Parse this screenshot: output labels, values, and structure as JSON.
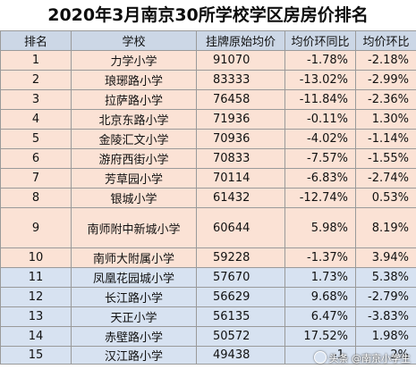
{
  "title": "2020年3月南京30所学校学区房房价排名",
  "headers": [
    "排名",
    "学校",
    "挂牌原始均价",
    "均价环同比",
    "均价环比"
  ],
  "rows": [
    {
      "rank": "1",
      "school": "力学小学",
      "price": "91070",
      "yoy": "-1.78%",
      "mom": "-2.18%"
    },
    {
      "rank": "2",
      "school": "琅琊路小学",
      "price": "83333",
      "yoy": "-13.02%",
      "mom": "-2.99%"
    },
    {
      "rank": "3",
      "school": "拉萨路小学",
      "price": "76458",
      "yoy": "-11.84%",
      "mom": "-2.36%"
    },
    {
      "rank": "4",
      "school": "北京东路小学",
      "price": "71936",
      "yoy": "-0.11%",
      "mom": "1.30%"
    },
    {
      "rank": "5",
      "school": "金陵汇文小学",
      "price": "70936",
      "yoy": "-4.02%",
      "mom": "-1.14%"
    },
    {
      "rank": "6",
      "school": "游府西街小学",
      "price": "70833",
      "yoy": "-7.57%",
      "mom": "-1.55%"
    },
    {
      "rank": "7",
      "school": "芳草园小学",
      "price": "70114",
      "yoy": "-6.83%",
      "mom": "-2.74%"
    },
    {
      "rank": "8",
      "school": "银城小学",
      "price": "61432",
      "yoy": "-12.74%",
      "mom": "0.53%"
    },
    {
      "rank": "9",
      "school": "南师附中新城小学",
      "price": "60644",
      "yoy": "5.98%",
      "mom": "8.19%"
    },
    {
      "rank": "10",
      "school": "南师大附属小学",
      "price": "59228",
      "yoy": "-1.37%",
      "mom": "3.94%"
    },
    {
      "rank": "11",
      "school": "凤凰花园城小学",
      "price": "57670",
      "yoy": "1.73%",
      "mom": "5.38%"
    },
    {
      "rank": "12",
      "school": "长江路小学",
      "price": "56629",
      "yoy": "9.68%",
      "mom": "-2.79%"
    },
    {
      "rank": "13",
      "school": "天正小学",
      "price": "56135",
      "yoy": "6.47%",
      "mom": "-3.83%"
    },
    {
      "rank": "14",
      "school": "赤壁路小学",
      "price": "50572",
      "yoy": "17.52%",
      "mom": "1.98%"
    },
    {
      "rank": "15",
      "school": "汉江路小学",
      "price": "49438",
      "yoy": "-1.",
      "mom": "2%"
    }
  ],
  "watermark": "头条 @南京小学生",
  "colors": {
    "header_bg": "#ccd7e6",
    "top_rows_bg": "#fbe2d5",
    "bottom_rows_bg": "#d7e2f1"
  }
}
